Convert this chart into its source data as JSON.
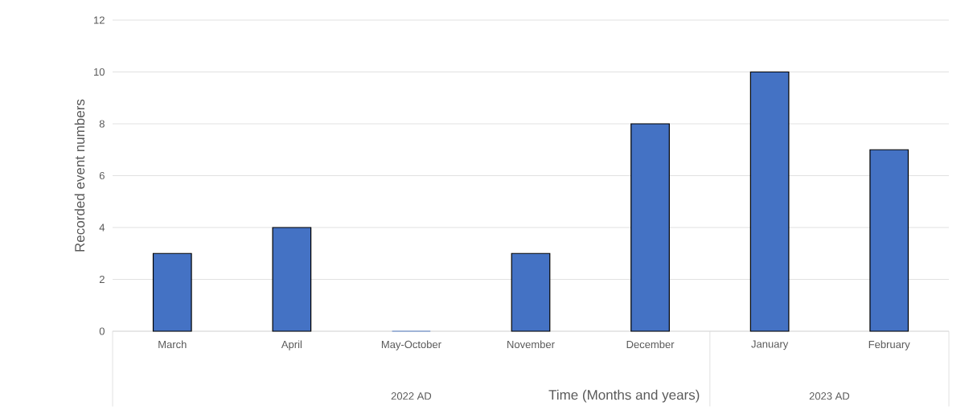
{
  "chart_data": {
    "type": "bar",
    "xlabel": "Time (Months and years)",
    "ylabel": "Recorded event numbers",
    "categories": [
      "March",
      "April",
      "May-October",
      "November",
      "December",
      "January",
      "February"
    ],
    "values": [
      3,
      4,
      0,
      3,
      8,
      10,
      7
    ],
    "color": "#4472c4",
    "ylim": [
      0,
      12
    ],
    "yticks": [
      0,
      2,
      4,
      6,
      8,
      10,
      12
    ],
    "grid": "y",
    "annotations": [
      "2022 AD",
      "2023 AD"
    ]
  }
}
